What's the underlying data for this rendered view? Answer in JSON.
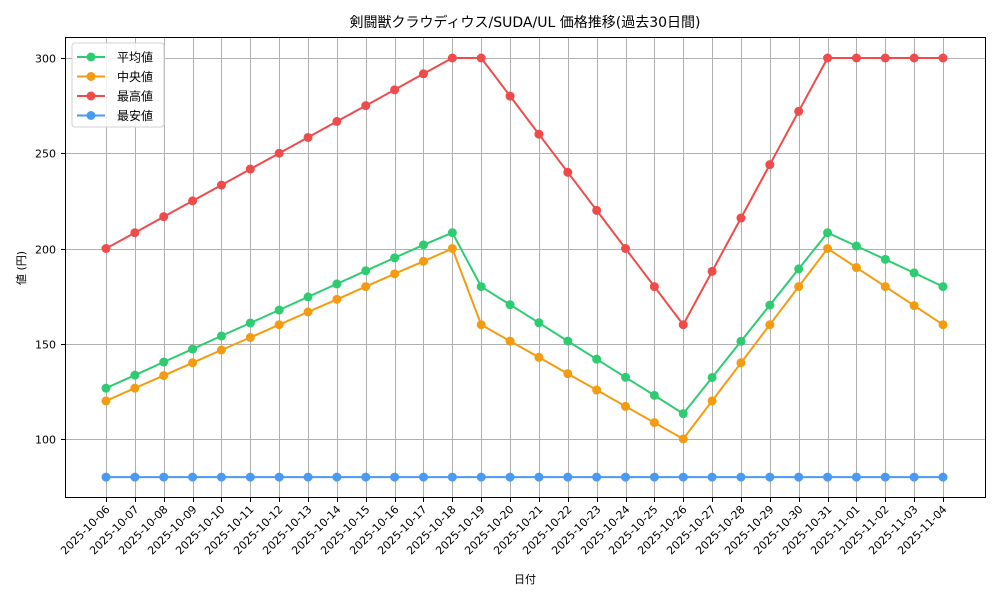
{
  "chart_data": {
    "type": "line",
    "title": "剣闘獣クラウディウス/SUDA/UL 価格推移(過去30日間)",
    "xlabel": "日付",
    "ylabel": "値 (円)",
    "ylim": [
      69,
      311
    ],
    "yticks": [
      100,
      150,
      200,
      250,
      300
    ],
    "grid": true,
    "legend_position": "upper left",
    "x": [
      "2025-10-06",
      "2025-10-07",
      "2025-10-08",
      "2025-10-09",
      "2025-10-10",
      "2025-10-11",
      "2025-10-12",
      "2025-10-13",
      "2025-10-14",
      "2025-10-15",
      "2025-10-16",
      "2025-10-17",
      "2025-10-18",
      "2025-10-19",
      "2025-10-20",
      "2025-10-21",
      "2025-10-22",
      "2025-10-23",
      "2025-10-24",
      "2025-10-25",
      "2025-10-26",
      "2025-10-27",
      "2025-10-28",
      "2025-10-29",
      "2025-10-30",
      "2025-10-31",
      "2025-11-01",
      "2025-11-02",
      "2025-11-03",
      "2025-11-04"
    ],
    "series": [
      {
        "name": "平均値",
        "color": "#2ecc71",
        "values": [
          126.7,
          133.5,
          140.4,
          147.2,
          154.1,
          160.9,
          167.7,
          174.6,
          181.4,
          188.3,
          195.1,
          201.9,
          208.3,
          180.0,
          170.5,
          161.0,
          151.4,
          141.9,
          132.4,
          122.9,
          113.3,
          132.3,
          151.3,
          170.3,
          189.3,
          208.3,
          201.3,
          194.3,
          187.2,
          180.0
        ]
      },
      {
        "name": "中央値",
        "color": "#f39c12",
        "values": [
          120.0,
          126.7,
          133.3,
          140.0,
          146.7,
          153.3,
          160.0,
          166.7,
          173.3,
          180.0,
          186.7,
          193.3,
          200.0,
          160.0,
          151.4,
          142.9,
          134.3,
          125.7,
          117.1,
          108.6,
          100.0,
          120.0,
          140.0,
          160.0,
          180.0,
          200.0,
          190.0,
          180.0,
          170.0,
          160.0
        ]
      },
      {
        "name": "最高値",
        "color": "#ef4b4b",
        "values": [
          200.0,
          208.3,
          216.7,
          225.0,
          233.3,
          241.7,
          250.0,
          258.3,
          266.7,
          275.0,
          283.3,
          291.7,
          300.0,
          300.0,
          280.0,
          260.0,
          240.0,
          220.0,
          200.0,
          180.0,
          160.0,
          188.0,
          216.0,
          244.0,
          272.0,
          300.0,
          300.0,
          300.0,
          300.0,
          300.0
        ]
      },
      {
        "name": "最安値",
        "color": "#4a9af5",
        "values": [
          80,
          80,
          80,
          80,
          80,
          80,
          80,
          80,
          80,
          80,
          80,
          80,
          80,
          80,
          80,
          80,
          80,
          80,
          80,
          80,
          80,
          80,
          80,
          80,
          80,
          80,
          80,
          80,
          80,
          80
        ]
      }
    ]
  }
}
